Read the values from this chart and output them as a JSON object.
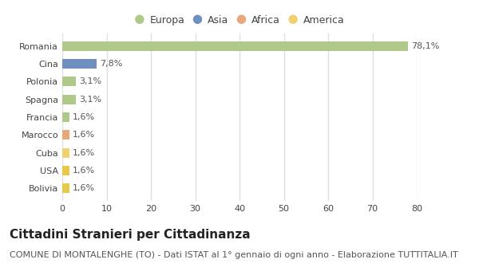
{
  "categories": [
    "Romania",
    "Cina",
    "Polonia",
    "Spagna",
    "Francia",
    "Marocco",
    "Cuba",
    "USA",
    "Bolivia"
  ],
  "values": [
    78.1,
    7.8,
    3.1,
    3.1,
    1.6,
    1.6,
    1.6,
    1.6,
    1.6
  ],
  "labels": [
    "78,1%",
    "7,8%",
    "3,1%",
    "3,1%",
    "1,6%",
    "1,6%",
    "1,6%",
    "1,6%",
    "1,6%"
  ],
  "colors": [
    "#aec98a",
    "#6e8fbf",
    "#aec98a",
    "#aec98a",
    "#aec98a",
    "#e8a87c",
    "#f0d070",
    "#e8c84a",
    "#e8c84a"
  ],
  "legend_labels": [
    "Europa",
    "Asia",
    "Africa",
    "America"
  ],
  "legend_colors": [
    "#aec98a",
    "#6e8fbf",
    "#e8a87c",
    "#f0d070"
  ],
  "title": "Cittadini Stranieri per Cittadinanza",
  "subtitle": "COMUNE DI MONTALENGHE (TO) - Dati ISTAT al 1° gennaio di ogni anno - Elaborazione TUTTITALIA.IT",
  "xlim": [
    0,
    80
  ],
  "xticks": [
    0,
    10,
    20,
    30,
    40,
    50,
    60,
    70,
    80
  ],
  "plot_bg_color": "#ffffff",
  "fig_bg_color": "#ffffff",
  "grid_color": "#e0e0e0",
  "title_fontsize": 11,
  "subtitle_fontsize": 8,
  "label_fontsize": 8,
  "tick_fontsize": 8,
  "legend_fontsize": 9
}
